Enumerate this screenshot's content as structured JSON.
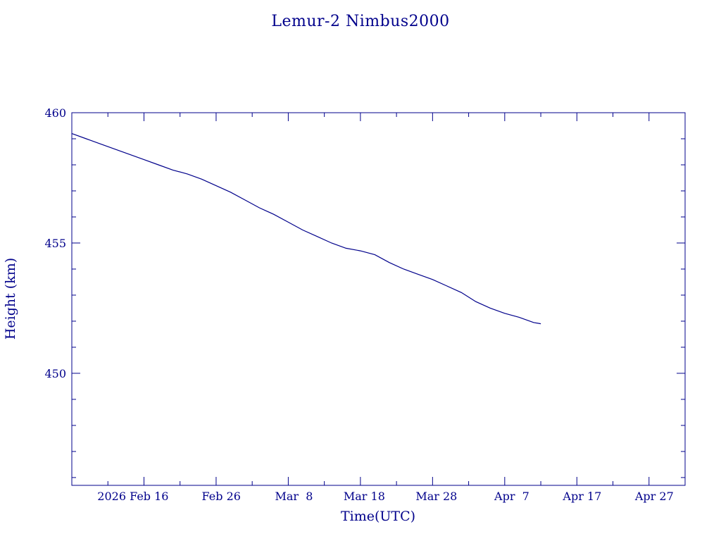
{
  "chart_data": {
    "type": "line",
    "title": "Lemur-2 Nimbus2000",
    "xlabel": "Time(UTC)",
    "ylabel": "Height (km)",
    "xlim": [
      "2026-02-06",
      "2026-05-02"
    ],
    "ylim": [
      445.7,
      460
    ],
    "y_ticks": [
      {
        "value": 450,
        "label": "450"
      },
      {
        "value": 455,
        "label": "455"
      },
      {
        "value": 460,
        "label": "460"
      }
    ],
    "y_minor_step": 1,
    "x_ticks": [
      {
        "value": "2026-02-16",
        "label": "2026 Feb 16"
      },
      {
        "value": "2026-02-26",
        "label": "Feb 26"
      },
      {
        "value": "2026-03-08",
        "label": "Mar  8"
      },
      {
        "value": "2026-03-18",
        "label": "Mar 18"
      },
      {
        "value": "2026-03-28",
        "label": "Mar 28"
      },
      {
        "value": "2026-04-07",
        "label": "Apr  7"
      },
      {
        "value": "2026-04-17",
        "label": "Apr 17"
      },
      {
        "value": "2026-04-27",
        "label": "Apr 27"
      }
    ],
    "x_minor_step_days": 5,
    "grid": false,
    "colors": {
      "axis": "#00008b",
      "line": "#00008b",
      "background": "#ffffff"
    },
    "series": [
      {
        "x": [
          "2026-02-06",
          "2026-02-08",
          "2026-02-10",
          "2026-02-12",
          "2026-02-14",
          "2026-02-16",
          "2026-02-18",
          "2026-02-20",
          "2026-02-22",
          "2026-02-24",
          "2026-02-26",
          "2026-02-28",
          "2026-03-02",
          "2026-03-04",
          "2026-03-06",
          "2026-03-08",
          "2026-03-10",
          "2026-03-12",
          "2026-03-14",
          "2026-03-16",
          "2026-03-18",
          "2026-03-20",
          "2026-03-22",
          "2026-03-24",
          "2026-03-26",
          "2026-03-28",
          "2026-03-30",
          "2026-04-01",
          "2026-04-03",
          "2026-04-05",
          "2026-04-07",
          "2026-04-09",
          "2026-04-11",
          "2026-04-12"
        ],
        "y": [
          459.2,
          459.0,
          458.8,
          458.6,
          458.4,
          458.2,
          458.0,
          457.8,
          457.65,
          457.45,
          457.2,
          456.95,
          456.65,
          456.35,
          456.1,
          455.8,
          455.5,
          455.25,
          455.0,
          454.8,
          454.7,
          454.55,
          454.25,
          454.0,
          453.8,
          453.6,
          453.35,
          453.1,
          452.75,
          452.5,
          452.3,
          452.15,
          451.95,
          451.9
        ]
      }
    ]
  }
}
